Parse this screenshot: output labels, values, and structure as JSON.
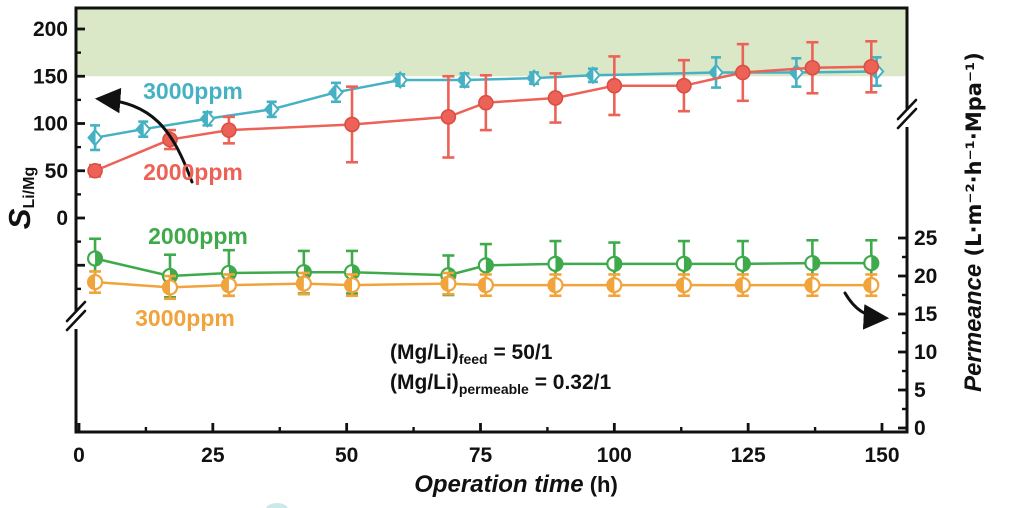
{
  "chart_data": {
    "type": "line",
    "title": "",
    "xlabel_main": "Operation time",
    "xlabel_unit": " (h)",
    "xlim": [
      0,
      155
    ],
    "x_ticks": [
      0,
      25,
      50,
      75,
      100,
      125,
      150
    ],
    "left_axis": {
      "label_main": "S",
      "label_sub": "Li/Mg",
      "ticks": [
        0,
        50,
        100,
        150,
        200
      ],
      "has_break_below_zero": true
    },
    "right_axis": {
      "label_main": "Permeance",
      "label_unit": " (L·m⁻²·h⁻¹·Mpa⁻¹)",
      "ticks": [
        0,
        5,
        10,
        15,
        20,
        25
      ],
      "has_break_above_25": true
    },
    "shaded_region": {
      "axis": "left",
      "from": 150,
      "to": 222,
      "color": "#dbe8c8"
    },
    "axis_color": "#111111",
    "series": [
      {
        "name": "selectivity-3000ppm",
        "label": "3000ppm",
        "color": "#47b1c4",
        "axis": "left",
        "marker": "half-diamond",
        "x": [
          3,
          12,
          24,
          36,
          48,
          60,
          72,
          85,
          96,
          119,
          134,
          149
        ],
        "y": [
          85,
          94,
          105,
          115,
          133,
          146,
          146,
          148,
          151,
          154,
          154,
          155
        ],
        "err": [
          13,
          8,
          7,
          8,
          10,
          6,
          7,
          6,
          7,
          16,
          15,
          15
        ]
      },
      {
        "name": "selectivity-2000ppm",
        "label": "2000ppm",
        "color": "#ec6257",
        "axis": "left",
        "marker": "circle",
        "x": [
          3,
          17,
          28,
          51,
          69,
          76,
          89,
          100,
          113,
          124,
          137,
          148
        ],
        "y": [
          50,
          83,
          93,
          99,
          107,
          122,
          127,
          140,
          140,
          154,
          159,
          160
        ],
        "err": [
          6,
          10,
          14,
          40,
          43,
          29,
          26,
          31,
          27,
          30,
          27,
          27
        ]
      },
      {
        "name": "permeance-2000ppm",
        "label": "2000ppm",
        "color": "#3faa4b",
        "axis": "right",
        "marker": "circle-half-right",
        "x": [
          3,
          17,
          28,
          42,
          51,
          69,
          76,
          89,
          100,
          113,
          124,
          137,
          148
        ],
        "y": [
          22.3,
          20.0,
          20.4,
          20.5,
          20.5,
          20.1,
          21.4,
          21.6,
          21.6,
          21.6,
          21.6,
          21.7,
          21.7
        ],
        "err": [
          2.6,
          2.8,
          3.0,
          2.8,
          2.8,
          2.6,
          2.8,
          3.0,
          2.8,
          3.0,
          3.0,
          3.0,
          3.0
        ]
      },
      {
        "name": "permeance-3000ppm",
        "label": "3000ppm",
        "color": "#f1a33c",
        "axis": "right",
        "marker": "circle-half-left",
        "x": [
          3,
          17,
          28,
          42,
          51,
          69,
          76,
          89,
          100,
          113,
          124,
          137,
          148
        ],
        "y": [
          19.2,
          18.5,
          18.8,
          19.0,
          18.8,
          19.0,
          18.8,
          18.8,
          18.8,
          18.8,
          18.8,
          18.8,
          18.8
        ],
        "err": [
          1.4,
          1.5,
          1.4,
          1.4,
          1.4,
          1.4,
          1.4,
          1.4,
          1.4,
          1.4,
          1.4,
          1.4,
          1.4
        ]
      }
    ],
    "annotations": [
      {
        "prefix": "(Mg/Li)",
        "sub": "feed",
        "rest": " = 50/1"
      },
      {
        "prefix": "(Mg/Li)",
        "sub": "permeable",
        "rest": " = 0.32/1"
      }
    ],
    "legend_position": "inline-labels",
    "grid": false
  }
}
